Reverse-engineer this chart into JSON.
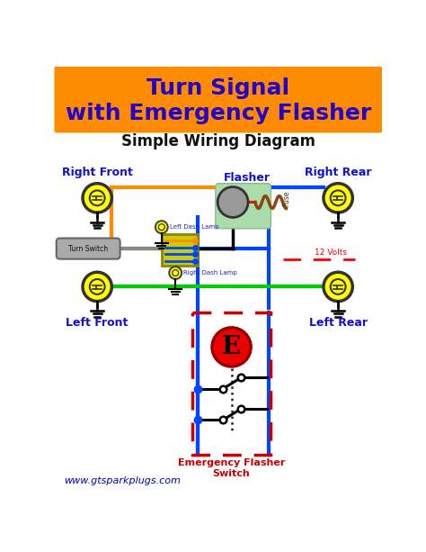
{
  "title_text": "Turn Signal\nwith Emergency Flasher",
  "title_bg": "#FF8C00",
  "title_color": "#2200CC",
  "subtitle": "Simple Wiring Diagram",
  "bg_color": "#FFFFFF",
  "footer": "www.gtsparkplugs.com",
  "footer_color": "#0000BB",
  "label_right_front": "Right Front",
  "label_right_rear": "Right Rear",
  "label_left_front": "Left Front",
  "label_left_rear": "Left Rear",
  "label_flasher": "Flasher",
  "label_turn_switch": "Turn Switch",
  "label_left_dash": "Left Dash Lamp",
  "label_right_dash": "Right Dash Lamp",
  "label_12v": "12 Volts",
  "label_fuse": "Fuse",
  "label_emergency": "Emergency Flasher\nSwitch",
  "label_E": "E",
  "wire_orange": "#FF8C00",
  "wire_blue": "#0044FF",
  "wire_green": "#00CC00",
  "wire_black": "#000000",
  "wire_red": "#FF0000",
  "wire_brown": "#8B4513",
  "lamp_fill": "#FFFF00",
  "switch_fill": "#CCCC00",
  "flasher_fill": "#999999",
  "flasher_bg": "#AADDAA",
  "emergency_fill": "#EE0000",
  "dashed_rect_color": "#CC0000",
  "ground_color": "#000000",
  "lbl_blue": "#1111CC",
  "lbl_red": "#CC0000"
}
